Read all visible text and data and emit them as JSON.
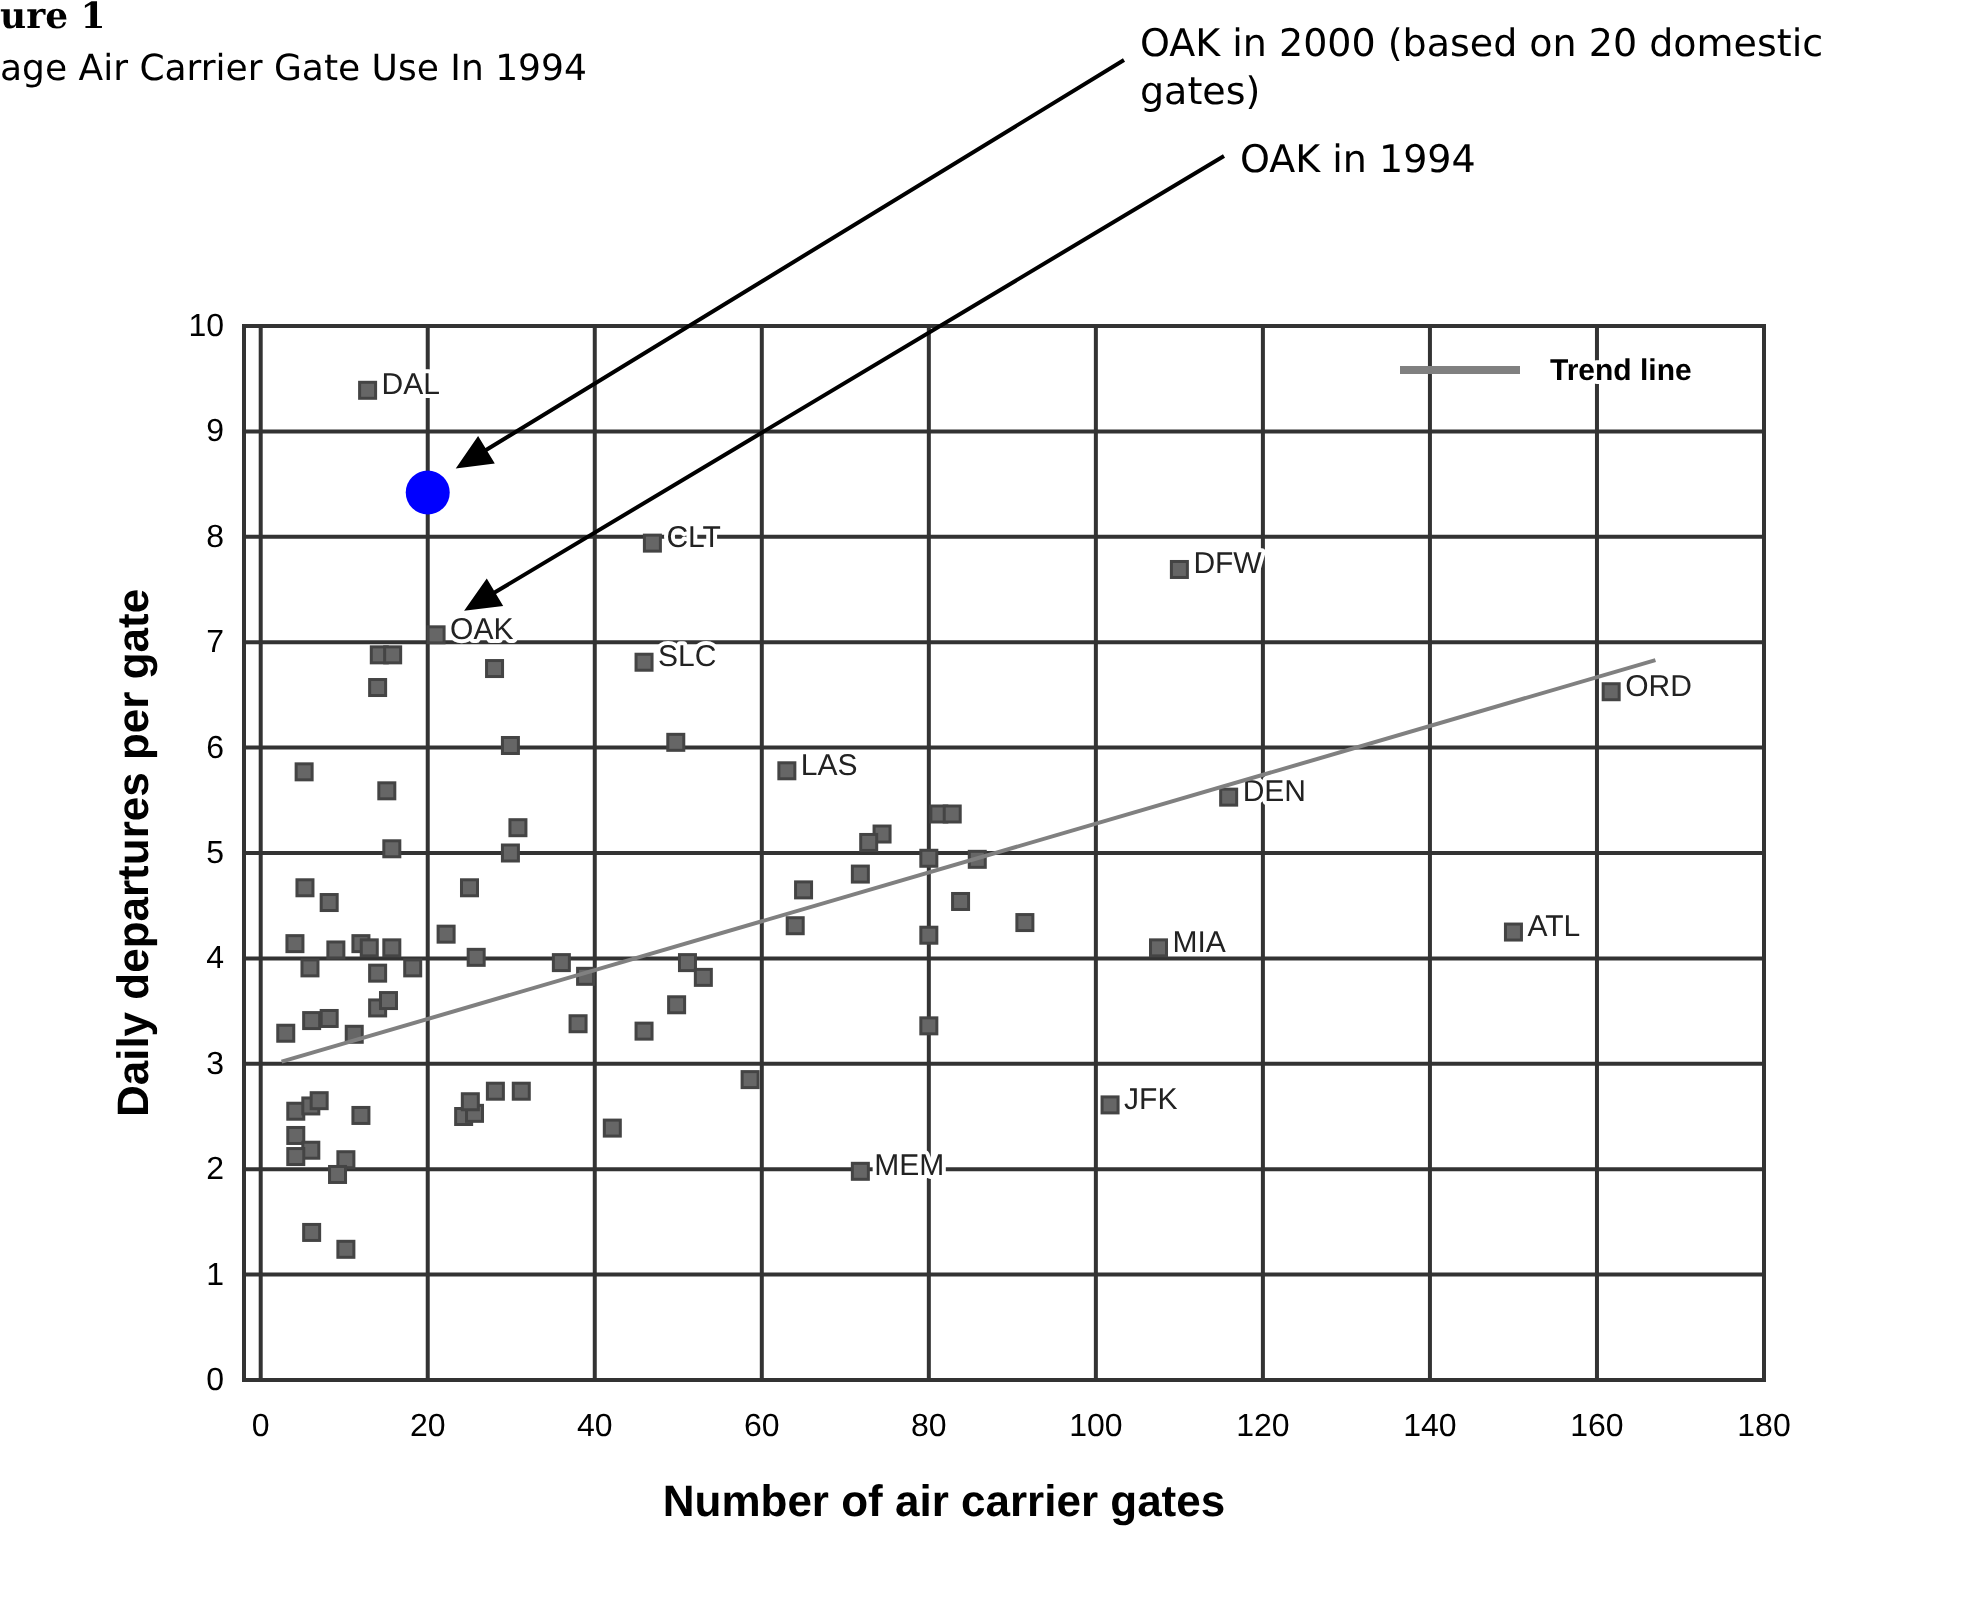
{
  "chart_data": {
    "type": "scatter",
    "title": "ure 1",
    "subtitle": "age Air Carrier Gate Use In 1994",
    "xlabel": "Number of air carrier gates",
    "ylabel": "Daily departures per gate",
    "xlim": [
      -2,
      180
    ],
    "ylim": [
      0,
      10
    ],
    "xticks": [
      0,
      20,
      40,
      60,
      80,
      100,
      120,
      140,
      160,
      180
    ],
    "yticks": [
      0,
      1,
      2,
      3,
      4,
      5,
      6,
      7,
      8,
      9,
      10
    ],
    "grid": true,
    "legend": "top right",
    "series": [
      {
        "marker": "square",
        "color": "#444444",
        "x": [
          12.8,
          46.9,
          21,
          45.9,
          63,
          110,
          161.7,
          115.9,
          107.5,
          150,
          101.7,
          71.8,
          14.2,
          15.8,
          28,
          14,
          29.9,
          49.7,
          5.2,
          15.1,
          30.8,
          81.2,
          82.8,
          74.4,
          72.8,
          15.7,
          29.9,
          80,
          85.8,
          5.3,
          8.2,
          25,
          65,
          71.8,
          83.8,
          64,
          91.5,
          22.2,
          4.1,
          12,
          13,
          15.7,
          9,
          18.2,
          25.8,
          5.9,
          14,
          36,
          38.9,
          51.1,
          53,
          80,
          14,
          15.3,
          6.1,
          8.2,
          3,
          11.2,
          38,
          49.8,
          45.9,
          80,
          58.6,
          4.2,
          6,
          7,
          12,
          24.3,
          25.6,
          25.1,
          28.1,
          31.2,
          42.1,
          4.2,
          6,
          4.2,
          10.2,
          9.2,
          6.1,
          10.2
        ],
        "values": [
          9.39,
          7.94,
          7.07,
          6.81,
          5.78,
          7.69,
          6.53,
          5.53,
          4.1,
          4.25,
          2.61,
          1.98,
          6.88,
          6.88,
          6.75,
          6.57,
          6.02,
          6.05,
          5.77,
          5.59,
          5.24,
          5.37,
          5.37,
          5.18,
          5.1,
          5.04,
          5,
          4.95,
          4.94,
          4.67,
          4.53,
          4.67,
          4.65,
          4.8,
          4.54,
          4.31,
          4.34,
          4.23,
          4.14,
          4.14,
          4.1,
          4.1,
          4.08,
          3.91,
          4.01,
          3.91,
          3.86,
          3.96,
          3.83,
          3.96,
          3.82,
          4.22,
          3.53,
          3.6,
          3.41,
          3.43,
          3.29,
          3.28,
          3.38,
          3.56,
          3.31,
          3.36,
          2.85,
          2.55,
          2.6,
          2.65,
          2.51,
          2.5,
          2.53,
          2.64,
          2.74,
          2.74,
          2.39,
          2.32,
          2.18,
          2.12,
          2.09,
          1.95,
          1.4,
          1.24
        ],
        "value_labels": [
          "DAL",
          "CLT",
          "OAK",
          "SLC",
          "LAS",
          "DFW",
          "ORD",
          "DEN",
          "MIA",
          "ATL",
          "JFK",
          "MEM",
          null,
          null,
          null,
          null,
          null,
          null,
          null,
          null,
          null,
          null,
          null,
          null,
          null,
          null,
          null,
          null,
          null,
          null,
          null,
          null,
          null,
          null,
          null,
          null,
          null,
          null,
          null,
          null,
          null,
          null,
          null,
          null,
          null,
          null,
          null,
          null,
          null,
          null,
          null,
          null,
          null,
          null,
          null,
          null,
          null,
          null,
          null,
          null,
          null,
          null,
          null,
          null,
          null,
          null,
          null,
          null,
          null,
          null,
          null,
          null,
          null,
          null,
          null,
          null,
          null,
          null,
          null,
          null
        ]
      },
      {
        "marker": "circle",
        "color": "#0000ff",
        "x": [
          20
        ],
        "values": [
          8.42
        ]
      },
      {
        "type": "line",
        "name": "Trend line",
        "color": "#808080",
        "x": [
          2.5,
          167
        ],
        "values": [
          3.02,
          6.83
        ]
      }
    ],
    "annotations": [
      "OAK in 2000 (based on 20 domestic gates)",
      "OAK in 1994"
    ]
  }
}
